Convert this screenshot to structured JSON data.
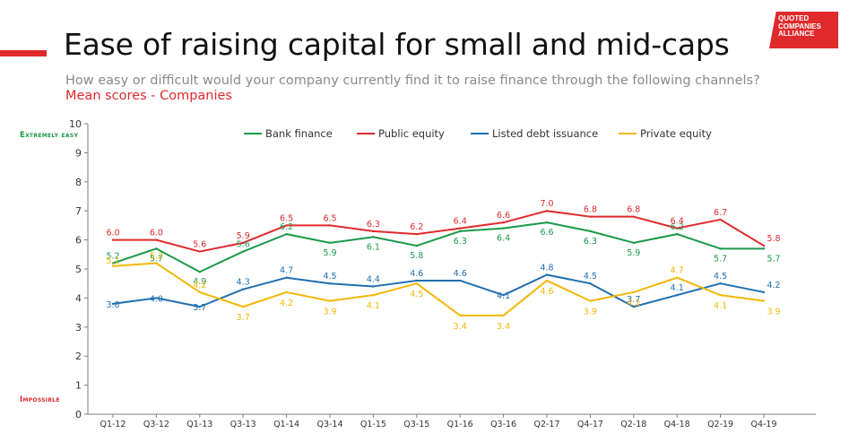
{
  "header": {
    "title": "Ease of raising capital for small and mid-caps",
    "subtitle": "How easy or difficult would your company currently find it to raise finance through the following channels?",
    "subtitle_highlight": "Mean scores - Companies",
    "logo_lines": [
      "QUOTED",
      "COMPANIES",
      "ALLIANCE"
    ]
  },
  "scale_labels": {
    "top": "Extremely easy",
    "bottom": "Impossible"
  },
  "chart_data": {
    "type": "line",
    "categories": [
      "Q1-12",
      "Q3-12",
      "Q1-13",
      "Q3-13",
      "Q1-14",
      "Q3-14",
      "Q1-15",
      "Q3-15",
      "Q1-16",
      "Q3-16",
      "Q2-17",
      "Q4-17",
      "Q2-18",
      "Q4-18",
      "Q2-19",
      "Q4-19"
    ],
    "ylim": [
      0,
      10
    ],
    "yticks": [
      0,
      1,
      2,
      3,
      4,
      5,
      6,
      7,
      8,
      9,
      10
    ],
    "grid": false,
    "legend_position": "top",
    "series": [
      {
        "name": "Bank finance",
        "color": "#1a9a49",
        "values": [
          5.2,
          5.7,
          4.9,
          5.6,
          6.2,
          5.9,
          6.1,
          5.8,
          6.3,
          6.4,
          6.6,
          6.3,
          5.9,
          6.2,
          5.7,
          5.7
        ]
      },
      {
        "name": "Public equity",
        "color": "#e0292b",
        "values": [
          6.0,
          6.0,
          5.6,
          5.9,
          6.5,
          6.5,
          6.3,
          6.2,
          6.4,
          6.6,
          7.0,
          6.8,
          6.8,
          6.4,
          6.7,
          5.8
        ]
      },
      {
        "name": "Listed debt issuance",
        "color": "#1f6fb0",
        "values": [
          3.8,
          4.0,
          3.7,
          4.3,
          4.7,
          4.5,
          4.4,
          4.6,
          4.6,
          4.1,
          4.8,
          4.5,
          3.7,
          4.1,
          4.5,
          4.2
        ]
      },
      {
        "name": "Private equity",
        "color": "#f2b705",
        "values": [
          5.1,
          5.2,
          4.2,
          3.7,
          4.2,
          3.9,
          4.1,
          4.5,
          3.4,
          3.4,
          4.6,
          3.9,
          4.2,
          4.7,
          4.1,
          3.9
        ]
      }
    ]
  }
}
